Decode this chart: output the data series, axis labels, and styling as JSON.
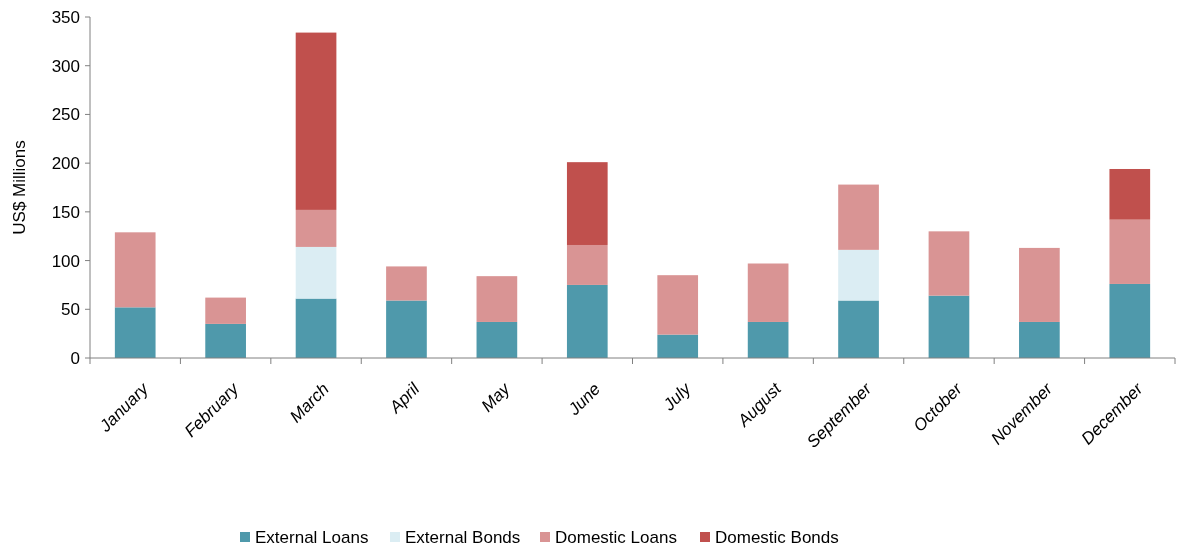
{
  "chart_data": {
    "type": "bar",
    "stacked": true,
    "ylabel": "US$ Millions",
    "categories": [
      "January",
      "February",
      "March",
      "April",
      "May",
      "June",
      "July",
      "August",
      "September",
      "October",
      "November",
      "December"
    ],
    "series": [
      {
        "name": "External Loans",
        "color": "#4f99ab",
        "values": [
          52,
          35,
          61,
          59,
          37,
          75,
          24,
          37,
          59,
          64,
          37,
          76
        ]
      },
      {
        "name": "External Bonds",
        "color": "#dbedf3",
        "values": [
          0,
          0,
          53,
          0,
          0,
          0,
          0,
          0,
          52,
          0,
          0,
          0
        ]
      },
      {
        "name": "Domestic Loans",
        "color": "#d99494",
        "values": [
          77,
          27,
          38,
          35,
          47,
          41,
          61,
          60,
          67,
          66,
          76,
          66
        ]
      },
      {
        "name": "Domestic Bonds",
        "color": "#c0504d",
        "values": [
          0,
          0,
          182,
          0,
          0,
          85,
          0,
          0,
          0,
          0,
          0,
          52
        ]
      }
    ],
    "ylim": [
      0,
      350
    ],
    "yticks": [
      0,
      50,
      100,
      150,
      200,
      250,
      300,
      350
    ],
    "grid": false,
    "legend": "bottom"
  }
}
